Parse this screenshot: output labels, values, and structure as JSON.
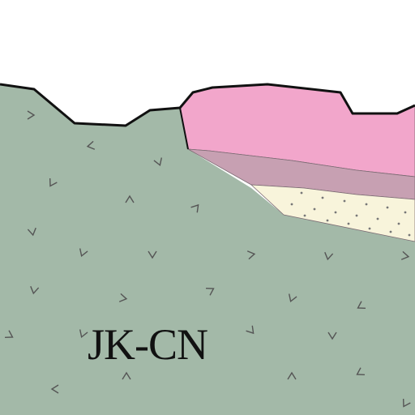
{
  "map": {
    "unit_label": "JK-CN",
    "colors": {
      "background": "#ffffff",
      "gray_green_unit": "#a3b9a8",
      "pink_unit": "#f2a6cb",
      "mauve_unit": "#c7a0b2",
      "cream_unit": "#f8f4db",
      "boundary": "#111111",
      "pattern_mark": "#555555",
      "stipple": "#777777"
    }
  }
}
